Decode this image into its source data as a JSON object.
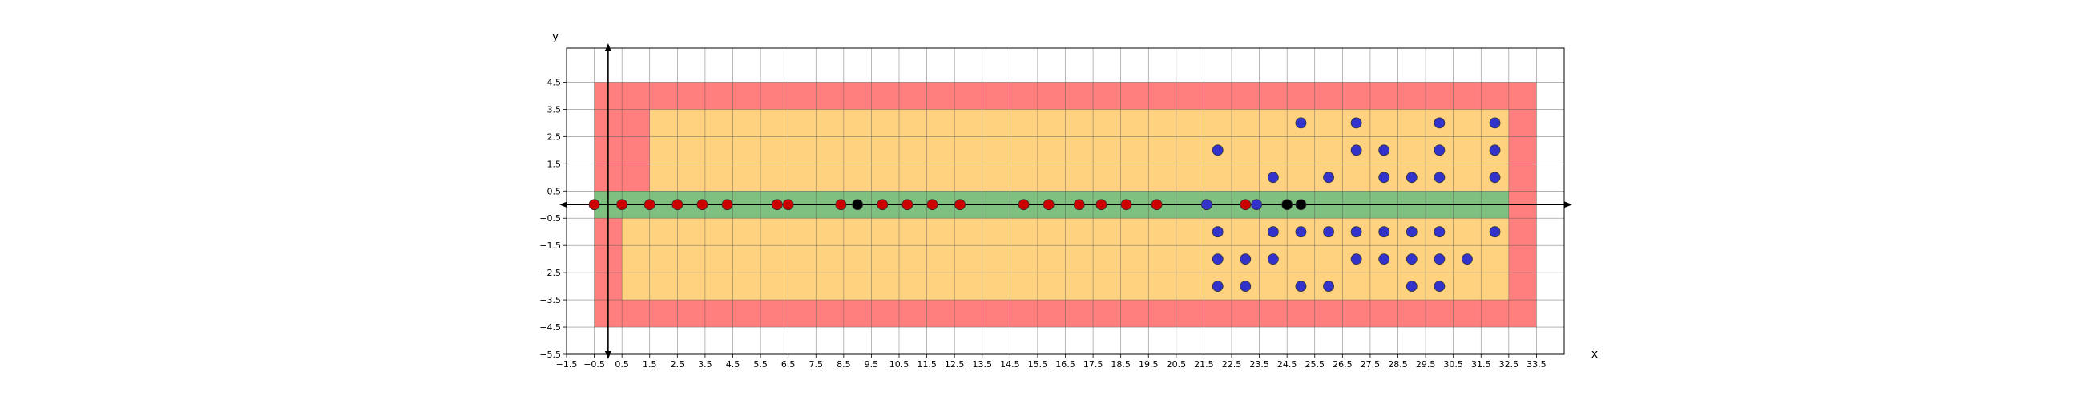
{
  "chart_data": {
    "type": "scatter",
    "xlabel": "x",
    "ylabel": "y",
    "xlim": [
      -1.5,
      34.5
    ],
    "ylim": [
      -5.5,
      5.75
    ],
    "grid": true,
    "x_ticks": [
      -1.5,
      -0.5,
      0.5,
      1.5,
      2.5,
      3.5,
      4.5,
      5.5,
      6.5,
      7.5,
      8.5,
      9.5,
      10.5,
      11.5,
      12.5,
      13.5,
      14.5,
      15.5,
      16.5,
      17.5,
      18.5,
      19.5,
      20.5,
      21.5,
      22.5,
      23.5,
      24.5,
      25.5,
      26.5,
      27.5,
      28.5,
      29.5,
      30.5,
      31.5,
      32.5,
      33.5
    ],
    "x_tick_labels": [
      "−1.5",
      "−0.5",
      "0.5",
      "1.5",
      "2.5",
      "3.5",
      "4.5",
      "5.5",
      "6.5",
      "7.5",
      "8.5",
      "9.5",
      "10.5",
      "11.5",
      "12.5",
      "13.5",
      "14.5",
      "15.5",
      "16.5",
      "17.5",
      "18.5",
      "19.5",
      "20.5",
      "21.5",
      "22.5",
      "23.5",
      "24.5",
      "25.5",
      "26.5",
      "27.5",
      "28.5",
      "29.5",
      "30.5",
      "31.5",
      "32.5",
      "33.5"
    ],
    "y_ticks": [
      4.5,
      3.5,
      2.5,
      1.5,
      0.5,
      -0.5,
      -1.5,
      -2.5,
      -3.5,
      -4.5,
      -5.5
    ],
    "y_tick_labels": [
      "4.5",
      "3.5",
      "2.5",
      "1.5",
      "0.5",
      "−0.5",
      "−1.5",
      "−2.5",
      "−3.5",
      "−4.5",
      "−5.5"
    ],
    "regions": [
      {
        "color": "#ff7f7f",
        "x_from": -0.5,
        "x_to": 33.5,
        "y_from": -4.5,
        "y_to": 4.5
      },
      {
        "color": "#ffd27f",
        "x_from": 1.5,
        "x_to": 32.5,
        "y_from": 0.5,
        "y_to": 3.5
      },
      {
        "color": "#ffd27f",
        "x_from": 0.5,
        "x_to": 32.5,
        "y_from": -3.5,
        "y_to": -0.5
      },
      {
        "color": "#7fbf7f",
        "x_from": -0.5,
        "x_to": 32.5,
        "y_from": -0.5,
        "y_to": 0.5
      }
    ],
    "series": [
      {
        "color": "#cc0000",
        "points": [
          [
            -0.5,
            0
          ],
          [
            0.5,
            0
          ],
          [
            1.5,
            0
          ],
          [
            2.5,
            0
          ],
          [
            3.4,
            0
          ],
          [
            4.3,
            0
          ],
          [
            6.1,
            0
          ],
          [
            6.5,
            0
          ],
          [
            8.4,
            0
          ],
          [
            9.9,
            0
          ],
          [
            10.8,
            0
          ],
          [
            11.7,
            0
          ],
          [
            12.7,
            0
          ],
          [
            15.0,
            0
          ],
          [
            15.9,
            0
          ],
          [
            17.0,
            0
          ],
          [
            17.8,
            0
          ],
          [
            18.7,
            0
          ],
          [
            19.8,
            0
          ],
          [
            23.0,
            0
          ]
        ]
      },
      {
        "color": "#000000",
        "points": [
          [
            9.0,
            0
          ],
          [
            24.5,
            0
          ],
          [
            25.0,
            0
          ]
        ]
      },
      {
        "color": "#3333cc",
        "points": [
          [
            21.6,
            0
          ],
          [
            23.4,
            0
          ],
          [
            22.0,
            2
          ],
          [
            22.0,
            -1
          ],
          [
            22.0,
            -2
          ],
          [
            22.0,
            -3
          ],
          [
            23.0,
            -2
          ],
          [
            23.0,
            -3
          ],
          [
            24.0,
            1
          ],
          [
            24.0,
            -1
          ],
          [
            24.0,
            -2
          ],
          [
            25.0,
            3
          ],
          [
            25.0,
            -1
          ],
          [
            25.0,
            -3
          ],
          [
            26.0,
            1
          ],
          [
            26.0,
            -1
          ],
          [
            26.0,
            -3
          ],
          [
            27.0,
            3
          ],
          [
            27.0,
            2
          ],
          [
            27.0,
            -1
          ],
          [
            27.0,
            -2
          ],
          [
            28.0,
            2
          ],
          [
            28.0,
            1
          ],
          [
            28.0,
            -1
          ],
          [
            28.0,
            -2
          ],
          [
            29.0,
            1
          ],
          [
            29.0,
            -1
          ],
          [
            29.0,
            -2
          ],
          [
            29.0,
            -3
          ],
          [
            30.0,
            3
          ],
          [
            30.0,
            2
          ],
          [
            30.0,
            1
          ],
          [
            30.0,
            -1
          ],
          [
            30.0,
            -2
          ],
          [
            30.0,
            -3
          ],
          [
            31.0,
            -2
          ],
          [
            32.0,
            3
          ],
          [
            32.0,
            2
          ],
          [
            32.0,
            1
          ],
          [
            32.0,
            -1
          ]
        ]
      }
    ]
  }
}
